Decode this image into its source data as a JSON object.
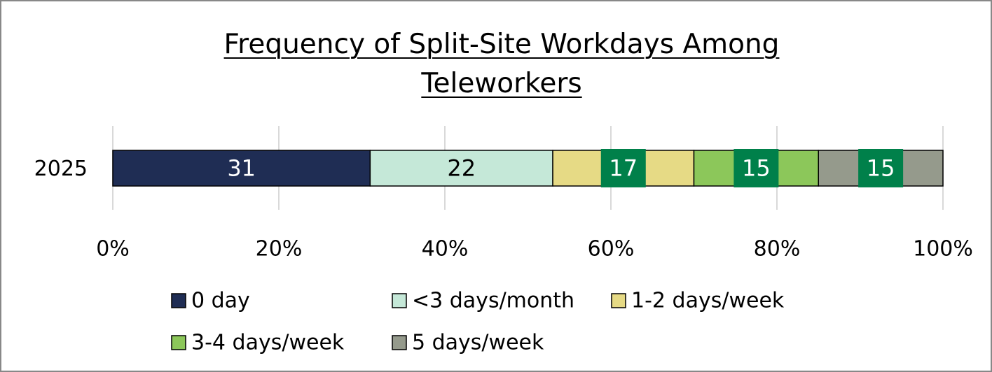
{
  "chart_data": {
    "type": "stacked_bar_horizontal",
    "title": "Frequency of Split-Site Workdays Among Teleworkers",
    "categories": [
      "2025"
    ],
    "series": [
      {
        "name": "0 day",
        "color": "#1f2d54",
        "values": [
          31
        ]
      },
      {
        "name": "<3 days/month",
        "color": "#c5e8d8",
        "values": [
          22
        ]
      },
      {
        "name": "1-2 days/week",
        "color": "#e6da85",
        "values": [
          17
        ]
      },
      {
        "name": "3-4 days/week",
        "color": "#8cc75a",
        "values": [
          15
        ]
      },
      {
        "name": "5 days/week",
        "color": "#959a8c",
        "values": [
          15
        ]
      }
    ],
    "xlim": [
      0,
      100
    ],
    "xticks": [
      {
        "value": 0,
        "label": "0%"
      },
      {
        "value": 20,
        "label": "20%"
      },
      {
        "value": 40,
        "label": "40%"
      },
      {
        "value": 60,
        "label": "60%"
      },
      {
        "value": 80,
        "label": "80%"
      },
      {
        "value": 100,
        "label": "100%"
      }
    ],
    "grid": true,
    "legend": "bottom"
  }
}
